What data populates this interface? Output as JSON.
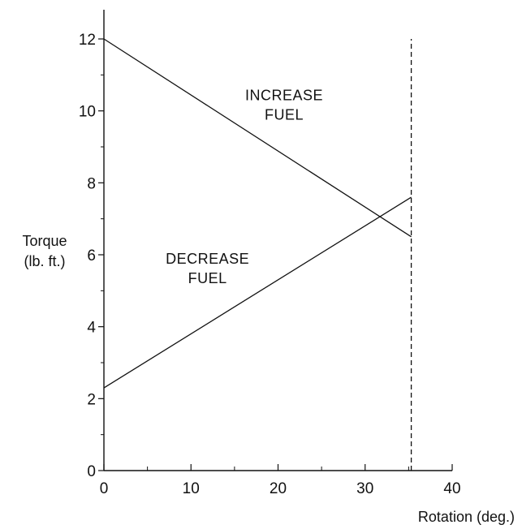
{
  "chart_data": {
    "type": "line",
    "xlabel": "Rotation (deg.)",
    "ylabel_lines": [
      "Torque",
      "(lb. ft.)"
    ],
    "xlim": [
      0,
      40
    ],
    "ylim": [
      0,
      12
    ],
    "x_ticks": [
      0,
      10,
      20,
      30,
      40
    ],
    "y_ticks": [
      0,
      2,
      4,
      6,
      8,
      10,
      12
    ],
    "y_minor_step": 1,
    "x_minor_step": 5,
    "grid": false,
    "series": [
      {
        "name": "",
        "x": [
          0,
          35.3
        ],
        "y": [
          12,
          6.5
        ]
      },
      {
        "name": "",
        "x": [
          0,
          35.3
        ],
        "y": [
          2.3,
          7.6
        ]
      }
    ],
    "reference_lines": [
      {
        "orientation": "vertical",
        "x": 35.3,
        "y_from": 0,
        "y_to": 12,
        "style": "dashed"
      }
    ],
    "annotations": [
      {
        "lines": [
          "INCREASE",
          "FUEL"
        ],
        "x": 20.7,
        "y": 10.3
      },
      {
        "lines": [
          "DECREASE",
          "FUEL"
        ],
        "x": 11.9,
        "y": 5.75
      }
    ]
  }
}
